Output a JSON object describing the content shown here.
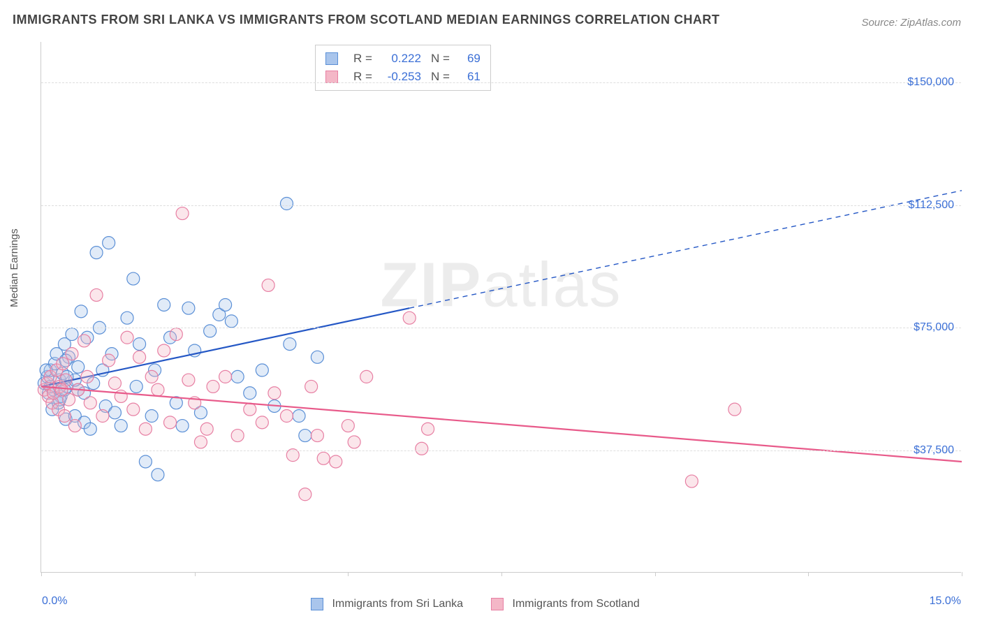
{
  "title": "IMMIGRANTS FROM SRI LANKA VS IMMIGRANTS FROM SCOTLAND MEDIAN EARNINGS CORRELATION CHART",
  "source": "Source: ZipAtlas.com",
  "watermark": "ZIPatlas",
  "ylabel": "Median Earnings",
  "chart": {
    "type": "scatter",
    "background_color": "#ffffff",
    "grid_color": "#dddddd",
    "axis_color": "#cccccc",
    "xlim": [
      0.0,
      15.0
    ],
    "ylim": [
      0,
      162500
    ],
    "x_format": "percent",
    "y_format": "currency",
    "x_ticks": [
      0.0,
      2.5,
      5.0,
      7.5,
      10.0,
      12.5,
      15.0
    ],
    "y_gridlines": [
      37500,
      75000,
      112500,
      150000
    ],
    "y_tick_labels": [
      "$37,500",
      "$75,000",
      "$112,500",
      "$150,000"
    ],
    "x_axis_endpoints": {
      "left": "0.0%",
      "right": "15.0%"
    },
    "label_color": "#3b6fd6",
    "label_fontsize": 16,
    "title_fontsize": 18,
    "title_color": "#444444",
    "marker_radius": 9,
    "marker_fill_opacity": 0.35,
    "marker_stroke_width": 1.2,
    "trend_line_width": 2.2
  },
  "series": [
    {
      "name": "Immigrants from Sri Lanka",
      "color_fill": "#a9c5ec",
      "color_stroke": "#5a8fd6",
      "line_color": "#2457c5",
      "R": "0.222",
      "N": "69",
      "trend": {
        "x1": 0.0,
        "y1": 57000,
        "x2": 15.0,
        "y2": 117000,
        "solid_until_x": 6.0
      },
      "points": [
        [
          0.05,
          58000
        ],
        [
          0.1,
          60000
        ],
        [
          0.12,
          55000
        ],
        [
          0.15,
          62000
        ],
        [
          0.18,
          50000
        ],
        [
          0.2,
          56000
        ],
        [
          0.22,
          64000
        ],
        [
          0.25,
          67000
        ],
        [
          0.28,
          52000
        ],
        [
          0.3,
          59000
        ],
        [
          0.32,
          54000
        ],
        [
          0.35,
          61000
        ],
        [
          0.38,
          70000
        ],
        [
          0.4,
          47000
        ],
        [
          0.42,
          57000
        ],
        [
          0.45,
          66000
        ],
        [
          0.5,
          73000
        ],
        [
          0.55,
          48000
        ],
        [
          0.6,
          56000
        ],
        [
          0.65,
          80000
        ],
        [
          0.7,
          46000
        ],
        [
          0.75,
          72000
        ],
        [
          0.8,
          44000
        ],
        [
          0.85,
          58000
        ],
        [
          0.9,
          98000
        ],
        [
          0.95,
          75000
        ],
        [
          1.0,
          62000
        ],
        [
          1.05,
          51000
        ],
        [
          1.1,
          101000
        ],
        [
          1.15,
          67000
        ],
        [
          1.2,
          49000
        ],
        [
          1.3,
          45000
        ],
        [
          1.4,
          78000
        ],
        [
          1.5,
          90000
        ],
        [
          1.55,
          57000
        ],
        [
          1.6,
          70000
        ],
        [
          1.7,
          34000
        ],
        [
          1.8,
          48000
        ],
        [
          1.85,
          62000
        ],
        [
          1.9,
          30000
        ],
        [
          2.0,
          82000
        ],
        [
          2.1,
          72000
        ],
        [
          2.2,
          52000
        ],
        [
          2.3,
          45000
        ],
        [
          2.4,
          81000
        ],
        [
          2.5,
          68000
        ],
        [
          2.6,
          49000
        ],
        [
          2.75,
          74000
        ],
        [
          2.9,
          79000
        ],
        [
          3.0,
          82000
        ],
        [
          3.1,
          77000
        ],
        [
          3.2,
          60000
        ],
        [
          3.4,
          55000
        ],
        [
          3.6,
          62000
        ],
        [
          3.8,
          51000
        ],
        [
          4.0,
          113000
        ],
        [
          4.05,
          70000
        ],
        [
          4.2,
          48000
        ],
        [
          4.3,
          42000
        ],
        [
          4.5,
          66000
        ],
        [
          0.6,
          63000
        ],
        [
          0.7,
          55000
        ],
        [
          0.4,
          65000
        ],
        [
          0.55,
          59000
        ],
        [
          0.15,
          57000
        ],
        [
          0.08,
          62000
        ],
        [
          0.3,
          53000
        ],
        [
          0.42,
          60000
        ],
        [
          0.38,
          56000
        ]
      ]
    },
    {
      "name": "Immigrants from Scotland",
      "color_fill": "#f4b7c7",
      "color_stroke": "#e77fa3",
      "line_color": "#e85a8a",
      "R": "-0.253",
      "N": "61",
      "trend": {
        "x1": 0.0,
        "y1": 57000,
        "x2": 15.0,
        "y2": 34000,
        "solid_until_x": 15.0
      },
      "points": [
        [
          0.05,
          56000
        ],
        [
          0.1,
          58000
        ],
        [
          0.12,
          54000
        ],
        [
          0.15,
          60000
        ],
        [
          0.18,
          52000
        ],
        [
          0.2,
          55000
        ],
        [
          0.25,
          62000
        ],
        [
          0.28,
          50000
        ],
        [
          0.3,
          57000
        ],
        [
          0.35,
          64000
        ],
        [
          0.38,
          48000
        ],
        [
          0.4,
          59000
        ],
        [
          0.45,
          53000
        ],
        [
          0.5,
          67000
        ],
        [
          0.55,
          45000
        ],
        [
          0.6,
          56000
        ],
        [
          0.7,
          71000
        ],
        [
          0.75,
          60000
        ],
        [
          0.8,
          52000
        ],
        [
          0.9,
          85000
        ],
        [
          1.0,
          48000
        ],
        [
          1.1,
          65000
        ],
        [
          1.2,
          58000
        ],
        [
          1.3,
          54000
        ],
        [
          1.4,
          72000
        ],
        [
          1.5,
          50000
        ],
        [
          1.6,
          66000
        ],
        [
          1.7,
          44000
        ],
        [
          1.8,
          60000
        ],
        [
          1.9,
          56000
        ],
        [
          2.0,
          68000
        ],
        [
          2.1,
          46000
        ],
        [
          2.2,
          73000
        ],
        [
          2.3,
          110000
        ],
        [
          2.4,
          59000
        ],
        [
          2.5,
          52000
        ],
        [
          2.6,
          40000
        ],
        [
          2.7,
          44000
        ],
        [
          2.8,
          57000
        ],
        [
          3.0,
          60000
        ],
        [
          3.2,
          42000
        ],
        [
          3.4,
          50000
        ],
        [
          3.6,
          46000
        ],
        [
          3.7,
          88000
        ],
        [
          3.8,
          55000
        ],
        [
          4.0,
          48000
        ],
        [
          4.1,
          36000
        ],
        [
          4.3,
          24000
        ],
        [
          4.4,
          57000
        ],
        [
          4.5,
          42000
        ],
        [
          4.6,
          35000
        ],
        [
          4.8,
          34000
        ],
        [
          5.0,
          45000
        ],
        [
          5.1,
          40000
        ],
        [
          5.3,
          60000
        ],
        [
          6.0,
          78000
        ],
        [
          6.2,
          38000
        ],
        [
          6.3,
          44000
        ],
        [
          10.6,
          28000
        ],
        [
          11.3,
          50000
        ],
        [
          0.33,
          56000
        ]
      ]
    }
  ],
  "stats_box": {
    "labels": [
      "R =",
      "N ="
    ]
  },
  "footer_legend_labels": [
    "Immigrants from Sri Lanka",
    "Immigrants from Scotland"
  ]
}
